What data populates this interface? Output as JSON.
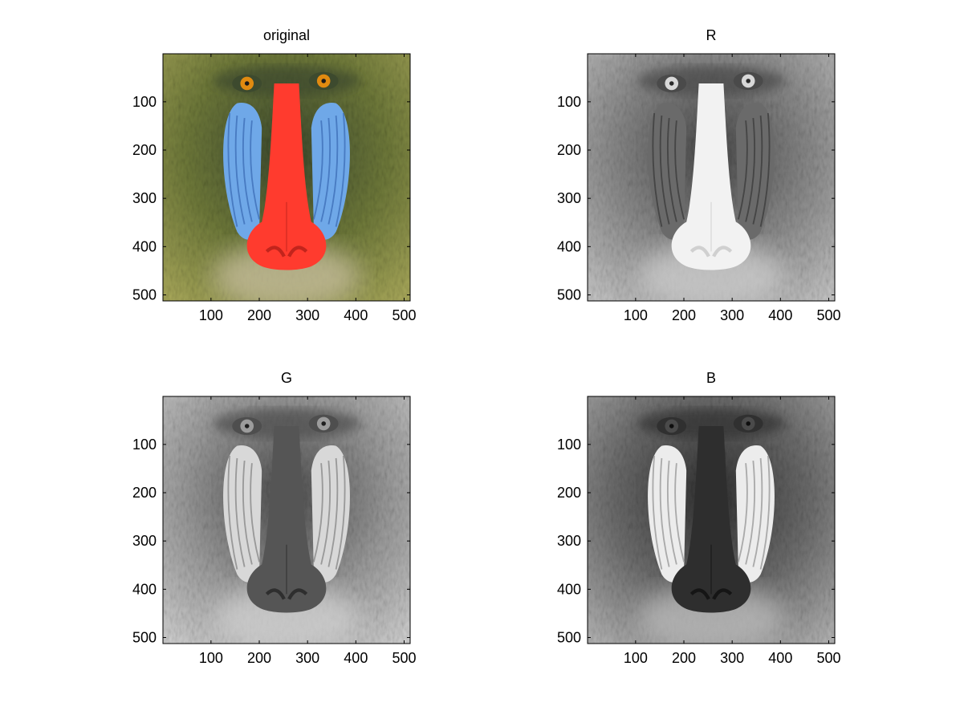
{
  "chart_data": [
    {
      "type": "image",
      "title": "original",
      "channel": "rgb",
      "xlim": [
        0.5,
        512.5
      ],
      "ylim": [
        0.5,
        512.5
      ],
      "y_reversed": true,
      "xticks": [
        100,
        200,
        300,
        400,
        500
      ],
      "yticks": [
        100,
        200,
        300,
        400,
        500
      ],
      "xtick_labels": [
        "100",
        "200",
        "300",
        "400",
        "500"
      ],
      "ytick_labels": [
        "100",
        "200",
        "300",
        "400",
        "500"
      ]
    },
    {
      "type": "image",
      "title": "R",
      "channel": "red",
      "xlim": [
        0.5,
        512.5
      ],
      "ylim": [
        0.5,
        512.5
      ],
      "y_reversed": true,
      "xticks": [
        100,
        200,
        300,
        400,
        500
      ],
      "yticks": [
        100,
        200,
        300,
        400,
        500
      ],
      "xtick_labels": [
        "100",
        "200",
        "300",
        "400",
        "500"
      ],
      "ytick_labels": [
        "100",
        "200",
        "300",
        "400",
        "500"
      ]
    },
    {
      "type": "image",
      "title": "G",
      "channel": "green",
      "xlim": [
        0.5,
        512.5
      ],
      "ylim": [
        0.5,
        512.5
      ],
      "y_reversed": true,
      "xticks": [
        100,
        200,
        300,
        400,
        500
      ],
      "yticks": [
        100,
        200,
        300,
        400,
        500
      ],
      "xtick_labels": [
        "100",
        "200",
        "300",
        "400",
        "500"
      ],
      "ytick_labels": [
        "100",
        "200",
        "300",
        "400",
        "500"
      ]
    },
    {
      "type": "image",
      "title": "B",
      "channel": "blue",
      "xlim": [
        0.5,
        512.5
      ],
      "ylim": [
        0.5,
        512.5
      ],
      "y_reversed": true,
      "xticks": [
        100,
        200,
        300,
        400,
        500
      ],
      "yticks": [
        100,
        200,
        300,
        400,
        500
      ],
      "xtick_labels": [
        "100",
        "200",
        "300",
        "400",
        "500"
      ],
      "ytick_labels": [
        "100",
        "200",
        "300",
        "400",
        "500"
      ]
    }
  ],
  "colors": {
    "rgb": {
      "fur": "#6f7a3a",
      "fur_dark": "#3d4a2e",
      "fur_light": "#a8a85a",
      "cheek": "#6fa8e8",
      "cheek_dark": "#3f6fb8",
      "nose": "#ff3b2e",
      "nose_dark": "#c2241c",
      "eye": "#e08a10",
      "pupil": "#1a1a1a",
      "beard": "#c9c0a0"
    },
    "red": {
      "fur": "#8c8c8c",
      "fur_dark": "#4a4a4a",
      "fur_light": "#c4c4c4",
      "cheek": "#6a6a6a",
      "cheek_dark": "#3c3c3c",
      "nose": "#f2f2f2",
      "nose_dark": "#d0d0d0",
      "eye": "#d8d8d8",
      "pupil": "#2a2a2a",
      "beard": "#cfcfcf"
    },
    "green": {
      "fur": "#9a9a9a",
      "fur_dark": "#4e4e4e",
      "fur_light": "#cfcfcf",
      "cheek": "#d8d8d8",
      "cheek_dark": "#8a8a8a",
      "nose": "#555555",
      "nose_dark": "#2e2e2e",
      "eye": "#9c9c9c",
      "pupil": "#1e1e1e",
      "beard": "#d2d2d2"
    },
    "blue": {
      "fur": "#6e6e6e",
      "fur_dark": "#303030",
      "fur_light": "#b2b2b2",
      "cheek": "#ececec",
      "cheek_dark": "#9a9a9a",
      "nose": "#2e2e2e",
      "nose_dark": "#151515",
      "eye": "#4a4a4a",
      "pupil": "#0e0e0e",
      "beard": "#bdbdbd"
    }
  }
}
